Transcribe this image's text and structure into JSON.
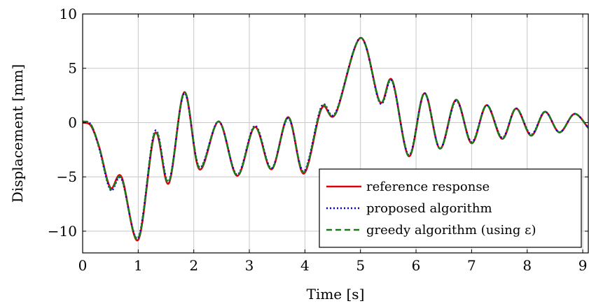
{
  "chart_data": {
    "type": "line",
    "xlabel": "Time [s]",
    "ylabel": "Displacement [mm]",
    "xlim": [
      0,
      9.1
    ],
    "ylim": [
      -12,
      10
    ],
    "xticks": [
      0,
      1,
      2,
      3,
      4,
      5,
      6,
      7,
      8,
      9
    ],
    "yticks": [
      -10,
      -5,
      0,
      5,
      10
    ],
    "xtick_labels": [
      "0",
      "1",
      "2",
      "3",
      "4",
      "5",
      "6",
      "7",
      "8",
      "9"
    ],
    "ytick_labels": [
      "−10",
      "−5",
      "0",
      "5",
      "10"
    ],
    "grid": true,
    "legend_position": "bottom-right",
    "series": [
      {
        "name": "reference response",
        "color": "#e0000b",
        "style": "solid",
        "x": [
          0,
          0.15,
          0.3,
          0.5,
          0.7,
          1.0,
          1.3,
          1.55,
          1.83,
          2.1,
          2.45,
          2.78,
          3.1,
          3.4,
          3.7,
          3.98,
          4.3,
          4.55,
          5.0,
          5.35,
          5.57,
          5.87,
          6.15,
          6.43,
          6.72,
          7.0,
          7.27,
          7.55,
          7.8,
          8.07,
          8.32,
          8.58,
          8.85,
          9.1
        ],
        "y": [
          0,
          -0.3,
          -2.3,
          -6.0,
          -5.0,
          -10.8,
          -1.0,
          -5.6,
          2.8,
          -4.3,
          0.1,
          -4.9,
          -0.4,
          -4.3,
          0.5,
          -4.7,
          1.3,
          0.8,
          7.8,
          1.9,
          3.9,
          -3.1,
          2.7,
          -2.4,
          2.1,
          -1.9,
          1.6,
          -1.5,
          1.3,
          -1.2,
          1.0,
          -0.9,
          0.8,
          -0.5
        ]
      },
      {
        "name": "proposed algorithm",
        "color": "#0000d0",
        "style": "dotted",
        "x": [
          0,
          0.15,
          0.3,
          0.5,
          0.7,
          1.0,
          1.3,
          1.55,
          1.83,
          2.1,
          2.45,
          2.78,
          3.1,
          3.4,
          3.7,
          3.98,
          4.3,
          4.55,
          5.0,
          5.35,
          5.57,
          5.87,
          6.15,
          6.43,
          6.72,
          7.0,
          7.27,
          7.55,
          7.8,
          8.07,
          8.32,
          8.58,
          8.85,
          9.1
        ],
        "y": [
          0.1,
          -0.2,
          -2.4,
          -6.2,
          -5.2,
          -10.6,
          -0.8,
          -5.4,
          2.7,
          -4.1,
          0.1,
          -4.8,
          -0.3,
          -4.2,
          0.4,
          -4.5,
          1.5,
          0.9,
          7.8,
          1.8,
          3.8,
          -3.0,
          2.7,
          -2.4,
          2.0,
          -1.8,
          1.6,
          -1.4,
          1.3,
          -1.1,
          1.0,
          -0.9,
          0.8,
          -0.5
        ]
      },
      {
        "name": "greedy algorithm (using ε)",
        "color": "#1a7a1a",
        "style": "dashed",
        "x": [
          0,
          0.15,
          0.3,
          0.5,
          0.7,
          1.0,
          1.3,
          1.55,
          1.83,
          2.1,
          2.45,
          2.78,
          3.1,
          3.4,
          3.7,
          3.98,
          4.3,
          4.55,
          5.0,
          5.35,
          5.57,
          5.87,
          6.15,
          6.43,
          6.72,
          7.0,
          7.27,
          7.55,
          7.8,
          8.07,
          8.32,
          8.58,
          8.85,
          9.1
        ],
        "y": [
          0.1,
          -0.2,
          -2.3,
          -6.1,
          -5.1,
          -10.7,
          -0.9,
          -5.5,
          2.8,
          -4.2,
          0.1,
          -4.9,
          -0.4,
          -4.3,
          0.5,
          -4.6,
          1.4,
          0.8,
          7.8,
          1.9,
          3.9,
          -3.1,
          2.7,
          -2.4,
          2.1,
          -1.9,
          1.6,
          -1.5,
          1.3,
          -1.2,
          1.0,
          -0.9,
          0.8,
          -0.5
        ]
      }
    ]
  }
}
